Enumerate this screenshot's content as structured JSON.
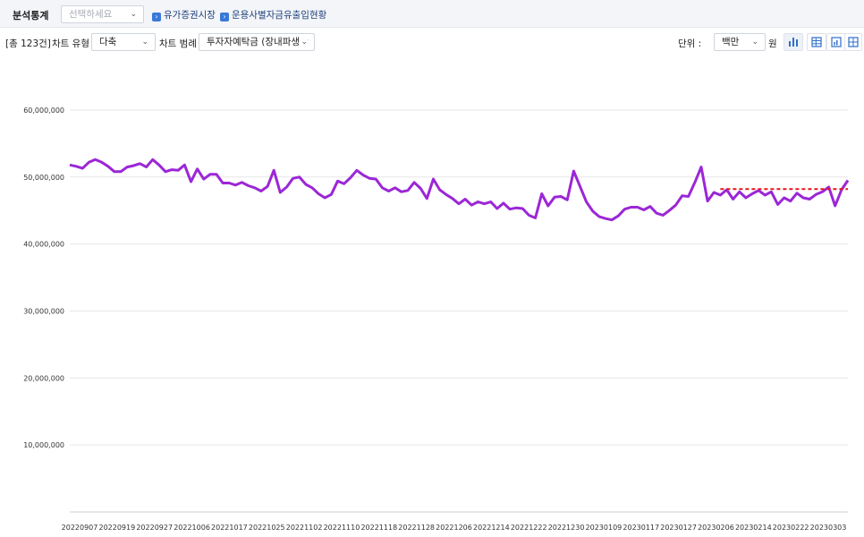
{
  "header": {
    "title": "분석통계",
    "select_placeholder": "선택하세요",
    "crumbs": [
      "유가증권시장",
      "운용사별자금유출입현황"
    ]
  },
  "toolbar": {
    "total_count": "[총 123건]",
    "chart_type_label": "차트 유형",
    "chart_type_value": "다축",
    "legend_label": "차트 범례",
    "legend_value": "투자자예탁금 (장내파생상",
    "unit_label": "단위 :",
    "unit_value": "백만",
    "unit_suffix": "원"
  },
  "icons": [
    "bar-chart-icon",
    "table-icon",
    "chart-table-icon",
    "grid-icon"
  ],
  "colors": {
    "series": "#9b27d6",
    "trend": "#e8141b",
    "grid": "#e6e6e6",
    "accent": "#2f6fc9"
  },
  "chart_data": {
    "type": "line",
    "ylim": [
      0,
      62000000
    ],
    "yticks": [
      "60,000,000",
      "50,000,000",
      "40,000,000",
      "30,000,000",
      "20,000,000",
      "10,000,000"
    ],
    "ytick_values": [
      60000000,
      50000000,
      40000000,
      30000000,
      20000000,
      10000000
    ],
    "xtick_labels": [
      "20220907",
      "20220919",
      "20220927",
      "20221006",
      "20221017",
      "20221025",
      "20221102",
      "20221110",
      "20221118",
      "20221128",
      "20221206",
      "20221214",
      "20221222",
      "20221230",
      "20230109",
      "20230117",
      "20230127",
      "20230206",
      "20230214",
      "20230222",
      "20230303"
    ],
    "series": [
      {
        "values": [
          51800000,
          51600000,
          51300000,
          52200000,
          52600000,
          52200000,
          51600000,
          50800000,
          50800000,
          51500000,
          51700000,
          52000000,
          51500000,
          52600000,
          51800000,
          50800000,
          51100000,
          51000000,
          51800000,
          49300000,
          51200000,
          49700000,
          50400000,
          50400000,
          49100000,
          49100000,
          48800000,
          49200000,
          48700000,
          48400000,
          47900000,
          48600000,
          51000000,
          47700000,
          48500000,
          49800000,
          50000000,
          48900000,
          48400000,
          47500000,
          46900000,
          47400000,
          49400000,
          49000000,
          49900000,
          51000000,
          50300000,
          49800000,
          49700000,
          48400000,
          47900000,
          48400000,
          47800000,
          48000000,
          49200000,
          48300000,
          46800000,
          49700000,
          48100000,
          47400000,
          46800000,
          46000000,
          46700000,
          45800000,
          46300000,
          46000000,
          46300000,
          45300000,
          46100000,
          45200000,
          45400000,
          45300000,
          44300000,
          43900000,
          47500000,
          45700000,
          47000000,
          47100000,
          46600000,
          50900000,
          48600000,
          46300000,
          44900000,
          44100000,
          43800000,
          43600000,
          44200000,
          45200000,
          45500000,
          45500000,
          45100000,
          45600000,
          44600000,
          44300000,
          45000000,
          45800000,
          47200000,
          47100000,
          49200000,
          51500000,
          46400000,
          47700000,
          47300000,
          48100000,
          46700000,
          47800000,
          46900000,
          47500000,
          48000000,
          47300000,
          47800000,
          45900000,
          46900000,
          46400000,
          47600000,
          46900000,
          46700000,
          47400000,
          47800000,
          48500000,
          45700000,
          48100000,
          49500000
        ]
      }
    ],
    "trend": {
      "from_index": 102,
      "to_index": 122,
      "value": 48200000
    }
  }
}
